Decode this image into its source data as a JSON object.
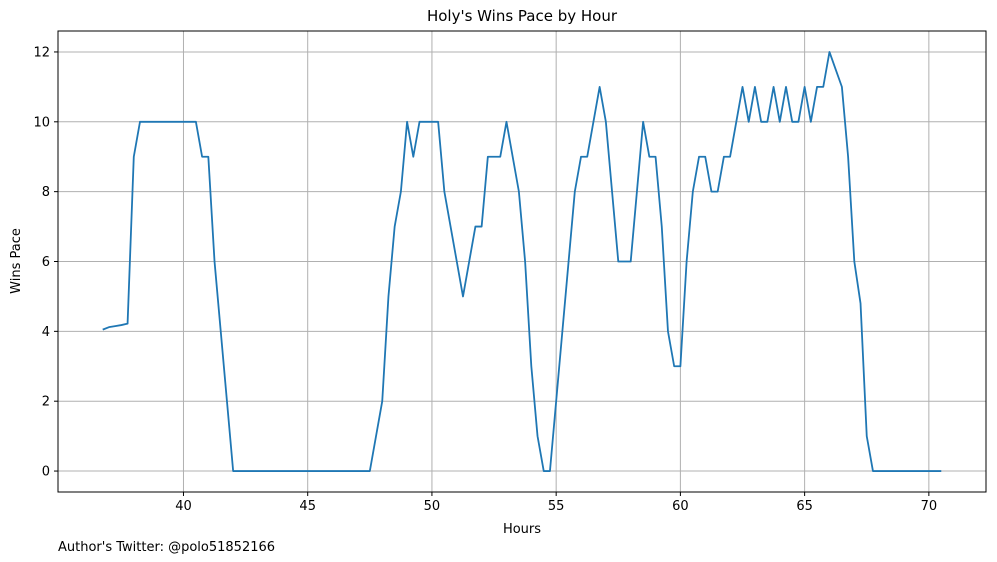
{
  "chart_data": {
    "type": "line",
    "title": "Holy's Wins Pace by Hour",
    "xlabel": "Hours",
    "ylabel": "Wins Pace",
    "xlim": [
      34.95,
      72.3
    ],
    "ylim": [
      -0.6,
      12.6
    ],
    "xticks": [
      40,
      45,
      50,
      55,
      60,
      65,
      70
    ],
    "yticks": [
      0,
      2,
      4,
      6,
      8,
      10,
      12
    ],
    "grid": true,
    "line_color": "#1f77b4",
    "series": [
      {
        "x": [
          36.75,
          37.0,
          37.25,
          37.5,
          37.75,
          38.0,
          38.25,
          38.5,
          38.75,
          39.0,
          39.25,
          39.5,
          39.75,
          40.0,
          40.25,
          40.5,
          40.75,
          41.0,
          41.25,
          41.5,
          41.75,
          42.0,
          42.25,
          47.5,
          47.75,
          48.0,
          48.25,
          48.5,
          48.75,
          49.0,
          49.25,
          49.5,
          49.75,
          50.0,
          50.25,
          50.5,
          50.75,
          51.0,
          51.25,
          51.5,
          51.75,
          52.0,
          52.25,
          52.5,
          52.75,
          53.0,
          53.25,
          53.5,
          53.75,
          54.0,
          54.25,
          54.5,
          54.75,
          55.0,
          55.25,
          55.5,
          55.75,
          56.0,
          56.25,
          56.5,
          56.75,
          57.0,
          57.25,
          57.5,
          57.75,
          58.0,
          58.25,
          58.5,
          58.75,
          59.0,
          59.25,
          59.5,
          59.75,
          60.0,
          60.25,
          60.5,
          60.75,
          61.0,
          61.25,
          61.5,
          61.75,
          62.0,
          62.25,
          62.5,
          62.75,
          63.0,
          63.25,
          63.5,
          63.75,
          64.0,
          64.25,
          64.5,
          64.75,
          65.0,
          65.25,
          65.5,
          65.75,
          66.0,
          66.25,
          66.5,
          66.75,
          67.0,
          67.25,
          67.5,
          67.75,
          68.0,
          70.5
        ],
        "y": [
          4.05,
          4.12,
          4.15,
          4.18,
          4.22,
          9.0,
          10.0,
          10.0,
          10.0,
          10.0,
          10.0,
          10.0,
          10.0,
          10.0,
          10.0,
          10.0,
          9.0,
          9.0,
          6.0,
          4.0,
          2.0,
          0.0,
          0.0,
          0.0,
          1.0,
          2.0,
          5.0,
          7.0,
          8.0,
          10.0,
          9.0,
          10.0,
          10.0,
          10.0,
          10.0,
          8.0,
          7.0,
          6.0,
          5.0,
          6.0,
          7.0,
          7.0,
          9.0,
          9.0,
          9.0,
          10.0,
          9.0,
          8.0,
          6.0,
          3.0,
          1.0,
          0.0,
          0.0,
          2.0,
          4.0,
          6.0,
          8.0,
          9.0,
          9.0,
          10.0,
          11.0,
          10.0,
          8.0,
          6.0,
          6.0,
          6.0,
          8.0,
          10.0,
          9.0,
          9.0,
          7.0,
          4.0,
          3.0,
          3.0,
          6.0,
          8.0,
          9.0,
          9.0,
          8.0,
          8.0,
          9.0,
          9.0,
          10.0,
          11.0,
          10.0,
          11.0,
          10.0,
          10.0,
          11.0,
          10.0,
          11.0,
          10.0,
          10.0,
          11.0,
          10.0,
          11.0,
          11.0,
          12.0,
          11.5,
          11.0,
          9.0,
          6.0,
          4.8,
          1.0,
          0.0,
          0.0,
          0.0
        ]
      }
    ]
  },
  "footnote": "Author's Twitter: @polo51852166"
}
